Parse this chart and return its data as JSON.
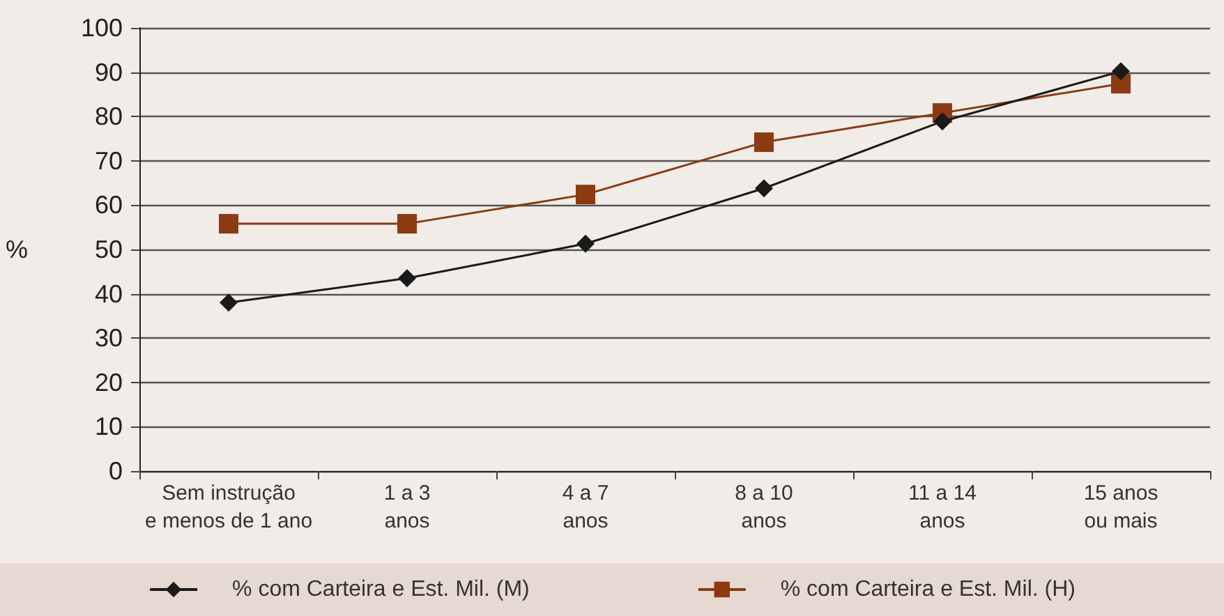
{
  "chart_data": {
    "type": "line",
    "ylabel": "%",
    "categories": [
      "Sem instrução\ne menos de 1 ano",
      "1 a 3\nanos",
      "4 a 7\nanos",
      "8 a 10\nanos",
      "11 a 14\nanos",
      "15 anos\nou mais"
    ],
    "series": [
      {
        "name": "% com Carteira e Est. Mil. (M)",
        "color": "#1a1a1a",
        "marker": "diamond",
        "values": [
          38,
          43.5,
          51.3,
          63.8,
          78.9,
          90.2
        ]
      },
      {
        "name": "% com Carteira e Est. Mil. (H)",
        "color": "#8b3a12",
        "marker": "square",
        "values": [
          55.8,
          55.8,
          62.4,
          74.2,
          80.8,
          87.4
        ]
      }
    ],
    "ylim": [
      0,
      100
    ],
    "yticks": [
      0,
      10,
      20,
      30,
      40,
      50,
      60,
      70,
      80,
      90,
      100
    ],
    "grid": "y",
    "legend": "bottom",
    "line_style": "solid"
  }
}
